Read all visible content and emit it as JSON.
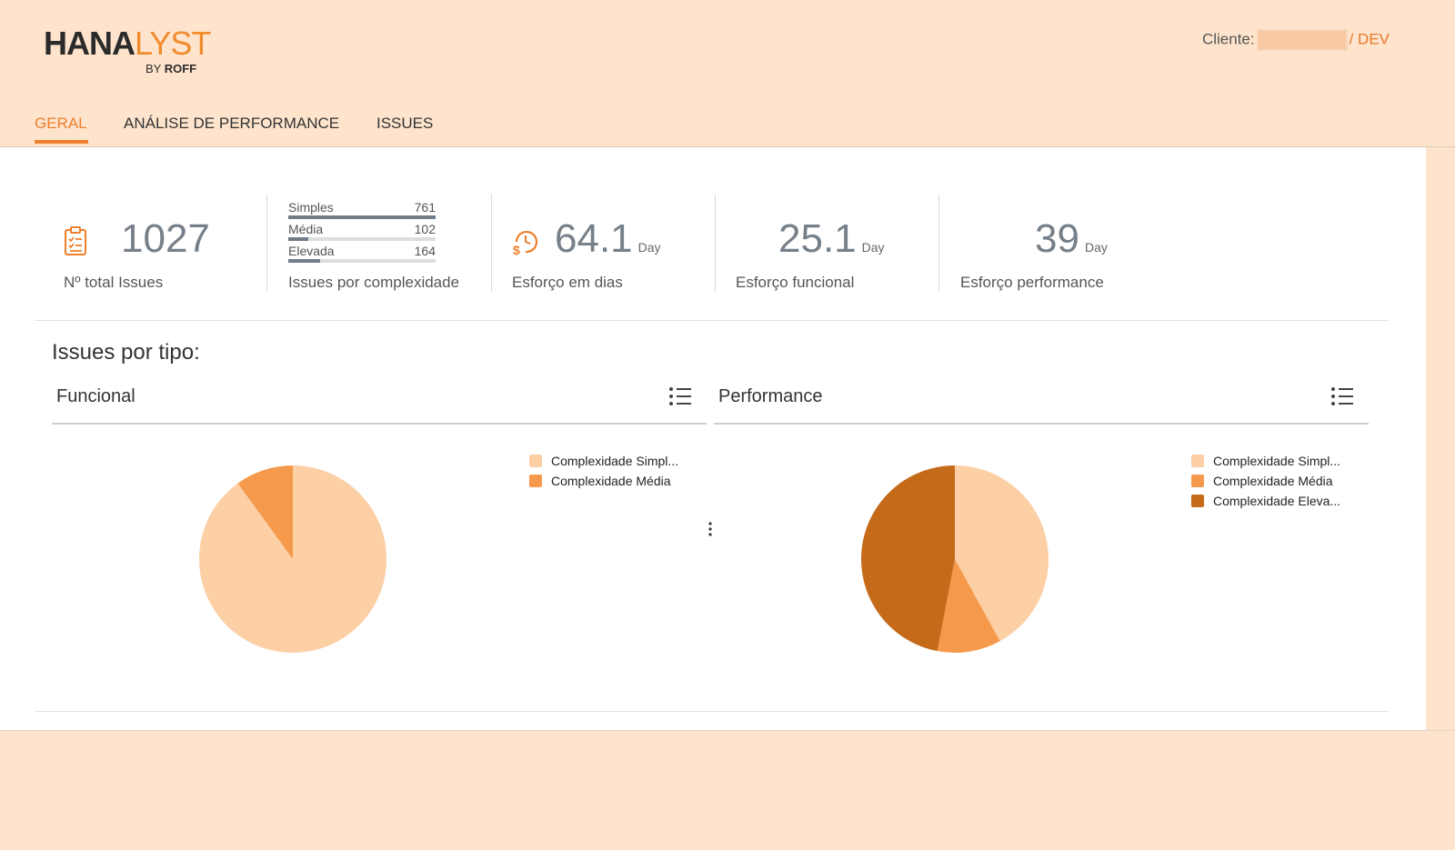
{
  "app": {
    "logo_main_dark": "HANA",
    "logo_main_light": "LYST",
    "logo_sub_prefix": "BY ",
    "logo_sub_brand": "ROFF"
  },
  "client": {
    "label": "Cliente:",
    "env": "/ DEV"
  },
  "tabs": [
    {
      "label": "GERAL",
      "active": true
    },
    {
      "label": "ANÁLISE DE PERFORMANCE",
      "active": false
    },
    {
      "label": "ISSUES",
      "active": false
    }
  ],
  "kpis": {
    "total": {
      "value": "1027",
      "label": "Nº total Issues",
      "icon": "clipboard-checklist-icon"
    },
    "complexity": {
      "label": "Issues por complexidade",
      "rows": [
        {
          "name": "Simples",
          "value": 761
        },
        {
          "name": "Média",
          "value": 102
        },
        {
          "name": "Elevada",
          "value": 164
        }
      ]
    },
    "effort_days": {
      "value": "64.1",
      "unit": "Day",
      "label": "Esforço em dias",
      "icon": "clock-dollar-icon"
    },
    "effort_functional": {
      "value": "25.1",
      "unit": "Day",
      "label": "Esforço funcional"
    },
    "effort_performance": {
      "value": "39",
      "unit": "Day",
      "label": "Esforço performance"
    }
  },
  "section_title": "Issues por tipo:",
  "colors": {
    "accent": "#ee7f2c",
    "simples": "#fccfa5",
    "media": "#f59a4c",
    "elevada": "#c56a19",
    "kpi_value": "#76808a"
  },
  "chart_data": [
    {
      "type": "pie",
      "title": "Funcional",
      "categories": [
        "Complexidade Simpl...",
        "Complexidade Média"
      ],
      "values": [
        90,
        10
      ],
      "colors": [
        "#fccfa5",
        "#f59a4c"
      ]
    },
    {
      "type": "pie",
      "title": "Performance",
      "categories": [
        "Complexidade Simpl...",
        "Complexidade Média",
        "Complexidade Eleva..."
      ],
      "values": [
        42,
        11,
        47
      ],
      "colors": [
        "#fccfa5",
        "#f59a4c",
        "#c56a19"
      ]
    }
  ]
}
